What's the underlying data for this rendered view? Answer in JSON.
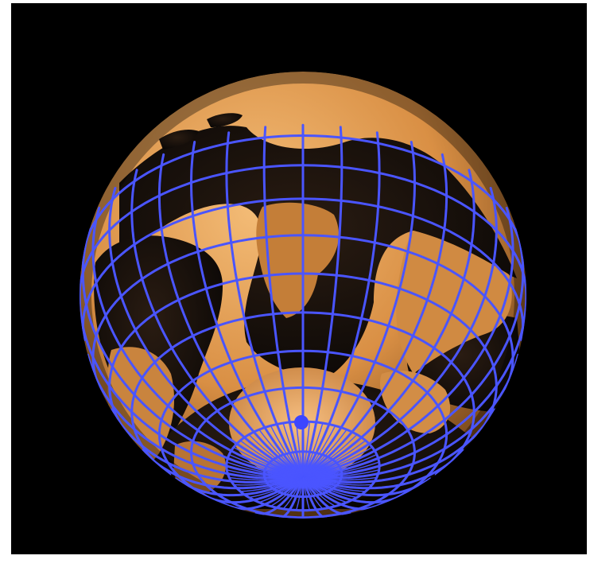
{
  "scene": {
    "subject": "globe-wireframe",
    "colors": {
      "border": "#ffffff",
      "background": "#000000",
      "land_light": "#f0b46a",
      "land_mid": "#d58a3e",
      "land_dark": "#7a4a1c",
      "ocean": "#160f0b",
      "grid": "#4a55ff",
      "pole": "#3d46ff"
    }
  }
}
